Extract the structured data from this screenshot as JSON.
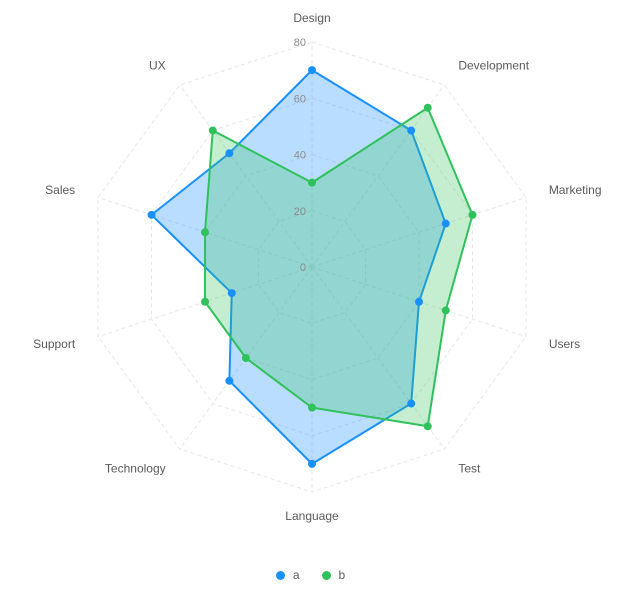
{
  "chart_data": {
    "type": "radar",
    "categories": [
      "Design",
      "Development",
      "Marketing",
      "Users",
      "Test",
      "Language",
      "Technology",
      "Support",
      "Sales",
      "UX"
    ],
    "series": [
      {
        "name": "a",
        "values": [
          70,
          60,
          50,
          40,
          60,
          70,
          50,
          30,
          60,
          50
        ],
        "color": "#1890ff"
      },
      {
        "name": "b",
        "values": [
          30,
          70,
          60,
          50,
          70,
          50,
          40,
          40,
          40,
          60
        ],
        "color": "#2fc25b"
      }
    ],
    "r_ticks": [
      "0",
      "20",
      "40",
      "60",
      "80"
    ],
    "rlim": [
      0,
      80
    ],
    "grid": true,
    "grid_shape": "polygon",
    "legend_position": "bottom"
  }
}
